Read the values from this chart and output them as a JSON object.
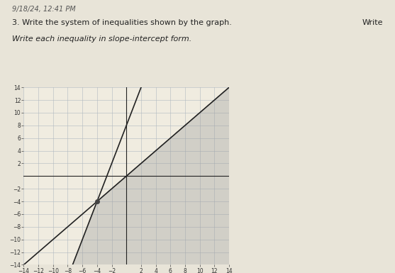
{
  "title_line1": "9/18/24, 12:41 PM",
  "title_line2": "3. Write the system of inequalities shown by the graph.",
  "title_line3": "Write each inequality in slope-intercept form.",
  "right_text": "Write",
  "xlim": [
    -14,
    14
  ],
  "ylim": [
    -14,
    14
  ],
  "xticks_major": [
    -14,
    -12,
    -10,
    -8,
    -6,
    -4,
    -2,
    2,
    4,
    6,
    8,
    10,
    12,
    14
  ],
  "yticks_major": [
    -14,
    -12,
    -10,
    -8,
    -6,
    -4,
    -2,
    2,
    4,
    6,
    8,
    10,
    12,
    14
  ],
  "line1_slope": 3,
  "line1_intercept": 8,
  "line1_color": "#222222",
  "line1_style": "-",
  "line2_slope": 1,
  "line2_intercept": 0,
  "line2_color": "#222222",
  "line2_style": "-",
  "shade_color": "#999999",
  "shade_alpha": 0.35,
  "bg_color": "#e8e4d8",
  "paper_color": "#f0ece0",
  "grid_color": "#b0b8c0",
  "axis_color": "#222222",
  "font_size_header": 7,
  "font_size_axis": 5.5,
  "dot_x": -4,
  "dot_y": -4
}
